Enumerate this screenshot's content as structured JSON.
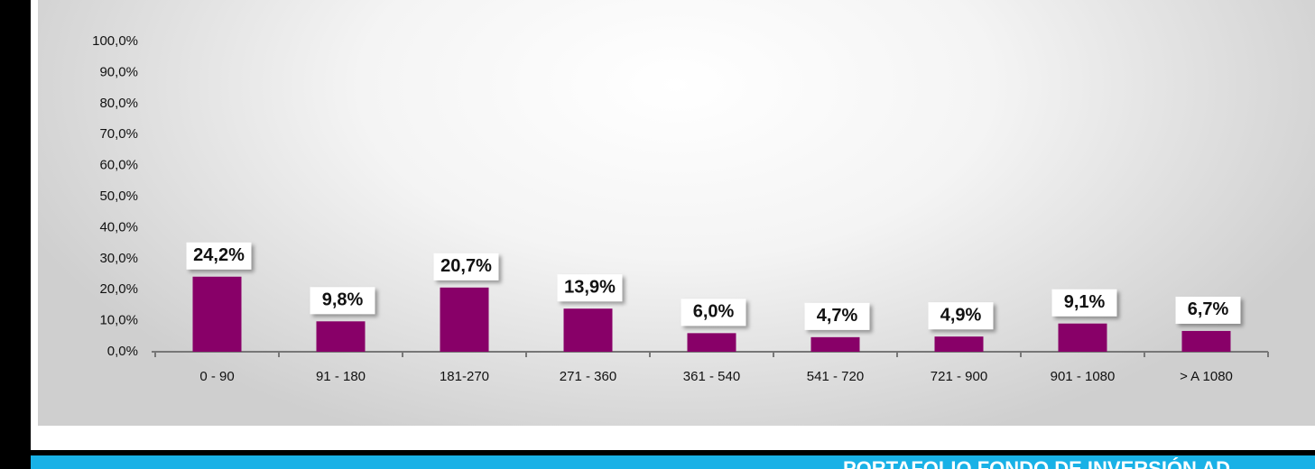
{
  "chart_data": {
    "type": "bar",
    "categories": [
      "0 - 90",
      "91 - 180",
      "181-270",
      "271 - 360",
      "361 - 540",
      "541 - 720",
      "721 - 900",
      "901 - 1080",
      "> A 1080"
    ],
    "values": [
      24.2,
      9.8,
      20.7,
      13.9,
      6.0,
      4.7,
      4.9,
      9.1,
      6.7
    ],
    "value_labels": [
      "24,2%",
      "9,8%",
      "20,7%",
      "13,9%",
      "6,0%",
      "4,7%",
      "4,9%",
      "9,1%",
      "6,7%"
    ],
    "color": "#880068",
    "ylim": [
      0,
      100
    ],
    "yticks": [
      {
        "value": 0,
        "label": "0,0%"
      },
      {
        "value": 10,
        "label": "10,0%"
      },
      {
        "value": 20,
        "label": "20,0%"
      },
      {
        "value": 30,
        "label": "30,0%"
      },
      {
        "value": 40,
        "label": "40,0%"
      },
      {
        "value": 50,
        "label": "50,0%"
      },
      {
        "value": 60,
        "label": "60,0%"
      },
      {
        "value": 70,
        "label": "70,0%"
      },
      {
        "value": 80,
        "label": "80,0%"
      },
      {
        "value": 90,
        "label": "90,0%"
      },
      {
        "value": 100,
        "label": "100,0%"
      }
    ],
    "grid": false
  },
  "banner": {
    "text": "PORTAFOLIO FONDO DE INVERSIÓN AD"
  }
}
